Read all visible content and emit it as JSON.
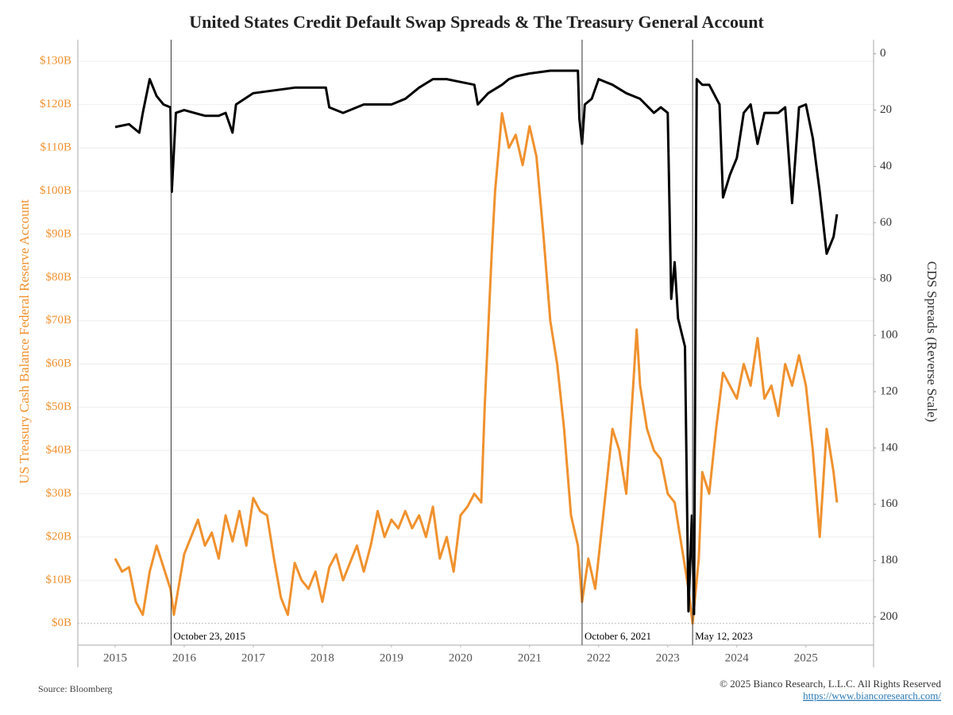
{
  "chart_data": {
    "type": "line",
    "title": "United States Credit Default Swap Spreads & The Treasury General Account",
    "ylabel": "US Treasury Cash Balance Federal Reserve Account",
    "y2label": "CDS Spreads (Reverse Scale)",
    "source": "Source: Bloomberg",
    "copyright": "© 2025 Bianco Research, L.L.C. All Rights Reserved",
    "url": "https://www.biancoresearch.com/",
    "xlim": [
      2014.46,
      2025.98
    ],
    "xticks": [
      2015,
      2016,
      2017,
      2018,
      2019,
      2020,
      2021,
      2022,
      2023,
      2024,
      2025
    ],
    "ylim": [
      -5,
      135
    ],
    "yticks": [
      {
        "value": 0,
        "label": "$0B"
      },
      {
        "value": 10,
        "label": "$10B"
      },
      {
        "value": 20,
        "label": "$20B"
      },
      {
        "value": 30,
        "label": "$30B"
      },
      {
        "value": 40,
        "label": "$40B"
      },
      {
        "value": 50,
        "label": "$50B"
      },
      {
        "value": 60,
        "label": "$60B"
      },
      {
        "value": 70,
        "label": "$70B"
      },
      {
        "value": 80,
        "label": "$80B"
      },
      {
        "value": 90,
        "label": "$90B"
      },
      {
        "value": 100,
        "label": "$100B"
      },
      {
        "value": 110,
        "label": "$110B"
      },
      {
        "value": 120,
        "label": "$120B"
      },
      {
        "value": 130,
        "label": "$130B"
      }
    ],
    "y2lim": [
      -5,
      210
    ],
    "y2ticks": [
      0,
      20,
      40,
      60,
      80,
      100,
      120,
      140,
      160,
      180,
      200
    ],
    "y2_reverse": true,
    "grid": true,
    "annotations": [
      {
        "x": 2015.81,
        "label": "October 23, 2015"
      },
      {
        "x": 2021.76,
        "label": "October 6, 2021"
      },
      {
        "x": 2023.36,
        "label": "May 12, 2023"
      }
    ],
    "series": [
      {
        "color": "#f0912e",
        "axis": "y",
        "x": [
          2015.0,
          2015.1,
          2015.2,
          2015.3,
          2015.4,
          2015.5,
          2015.6,
          2015.7,
          2015.8,
          2015.85,
          2016.0,
          2016.1,
          2016.2,
          2016.3,
          2016.4,
          2016.5,
          2016.6,
          2016.7,
          2016.8,
          2016.9,
          2017.0,
          2017.1,
          2017.2,
          2017.3,
          2017.4,
          2017.5,
          2017.6,
          2017.7,
          2017.8,
          2017.9,
          2018.0,
          2018.1,
          2018.2,
          2018.3,
          2018.4,
          2018.5,
          2018.6,
          2018.7,
          2018.8,
          2018.9,
          2019.0,
          2019.1,
          2019.2,
          2019.3,
          2019.4,
          2019.5,
          2019.6,
          2019.7,
          2019.8,
          2019.9,
          2020.0,
          2020.1,
          2020.2,
          2020.3,
          2020.35,
          2020.45,
          2020.5,
          2020.6,
          2020.7,
          2020.8,
          2020.9,
          2021.0,
          2021.1,
          2021.2,
          2021.3,
          2021.4,
          2021.5,
          2021.6,
          2021.7,
          2021.76,
          2021.85,
          2021.95,
          2022.1,
          2022.2,
          2022.3,
          2022.4,
          2022.5,
          2022.55,
          2022.6,
          2022.7,
          2022.8,
          2022.9,
          2023.0,
          2023.1,
          2023.2,
          2023.3,
          2023.36,
          2023.45,
          2023.5,
          2023.6,
          2023.7,
          2023.8,
          2023.9,
          2024.0,
          2024.1,
          2024.2,
          2024.3,
          2024.4,
          2024.5,
          2024.6,
          2024.7,
          2024.8,
          2024.9,
          2025.0,
          2025.1,
          2025.2,
          2025.3,
          2025.4,
          2025.45
        ],
        "values": [
          15,
          12,
          13,
          5,
          2,
          12,
          18,
          13,
          8,
          2,
          16,
          20,
          24,
          18,
          21,
          15,
          25,
          19,
          26,
          18,
          29,
          26,
          25,
          15,
          6,
          2,
          14,
          10,
          8,
          12,
          5,
          13,
          16,
          10,
          14,
          18,
          12,
          18,
          26,
          20,
          24,
          22,
          26,
          22,
          25,
          20,
          27,
          15,
          20,
          12,
          25,
          27,
          30,
          28,
          50,
          85,
          100,
          118,
          110,
          113,
          106,
          115,
          108,
          90,
          70,
          60,
          45,
          25,
          18,
          5,
          15,
          8,
          30,
          45,
          40,
          30,
          55,
          68,
          55,
          45,
          40,
          38,
          30,
          28,
          18,
          8,
          0,
          15,
          35,
          30,
          45,
          58,
          55,
          52,
          60,
          55,
          66,
          52,
          55,
          48,
          60,
          55,
          62,
          55,
          40,
          20,
          45,
          35,
          28
        ]
      },
      {
        "color": "#000000",
        "axis": "y2",
        "x": [
          2015.0,
          2015.2,
          2015.35,
          2015.4,
          2015.5,
          2015.6,
          2015.7,
          2015.8,
          2015.82,
          2015.88,
          2016.0,
          2016.3,
          2016.5,
          2016.6,
          2016.7,
          2016.75,
          2017.0,
          2017.3,
          2017.6,
          2017.9,
          2018.05,
          2018.1,
          2018.3,
          2018.6,
          2019.0,
          2019.2,
          2019.4,
          2019.6,
          2019.8,
          2020.0,
          2020.2,
          2020.25,
          2020.4,
          2020.6,
          2020.7,
          2020.8,
          2021.0,
          2021.3,
          2021.6,
          2021.7,
          2021.72,
          2021.76,
          2021.8,
          2021.9,
          2022.0,
          2022.2,
          2022.4,
          2022.6,
          2022.8,
          2022.9,
          2023.0,
          2023.05,
          2023.1,
          2023.15,
          2023.25,
          2023.3,
          2023.35,
          2023.38,
          2023.42,
          2023.5,
          2023.6,
          2023.75,
          2023.8,
          2023.9,
          2024.0,
          2024.1,
          2024.2,
          2024.3,
          2024.4,
          2024.6,
          2024.7,
          2024.8,
          2024.9,
          2025.0,
          2025.1,
          2025.2,
          2025.3,
          2025.4,
          2025.45
        ],
        "values": [
          26,
          25,
          28,
          21,
          9,
          15,
          18,
          19,
          49,
          21,
          20,
          22,
          22,
          21,
          28,
          18,
          14,
          13,
          12,
          12,
          12,
          19,
          21,
          18,
          18,
          16,
          12,
          9,
          9,
          10,
          11,
          18,
          14,
          11,
          9,
          8,
          7,
          6,
          6,
          6,
          23,
          32,
          18,
          16,
          9,
          11,
          14,
          16,
          21,
          19,
          21,
          87,
          74,
          94,
          104,
          198,
          164,
          199,
          9,
          11,
          11,
          18,
          51,
          43,
          37,
          21,
          18,
          32,
          21,
          21,
          19,
          53,
          19,
          18,
          30,
          49,
          71,
          65,
          57
        ]
      }
    ]
  }
}
